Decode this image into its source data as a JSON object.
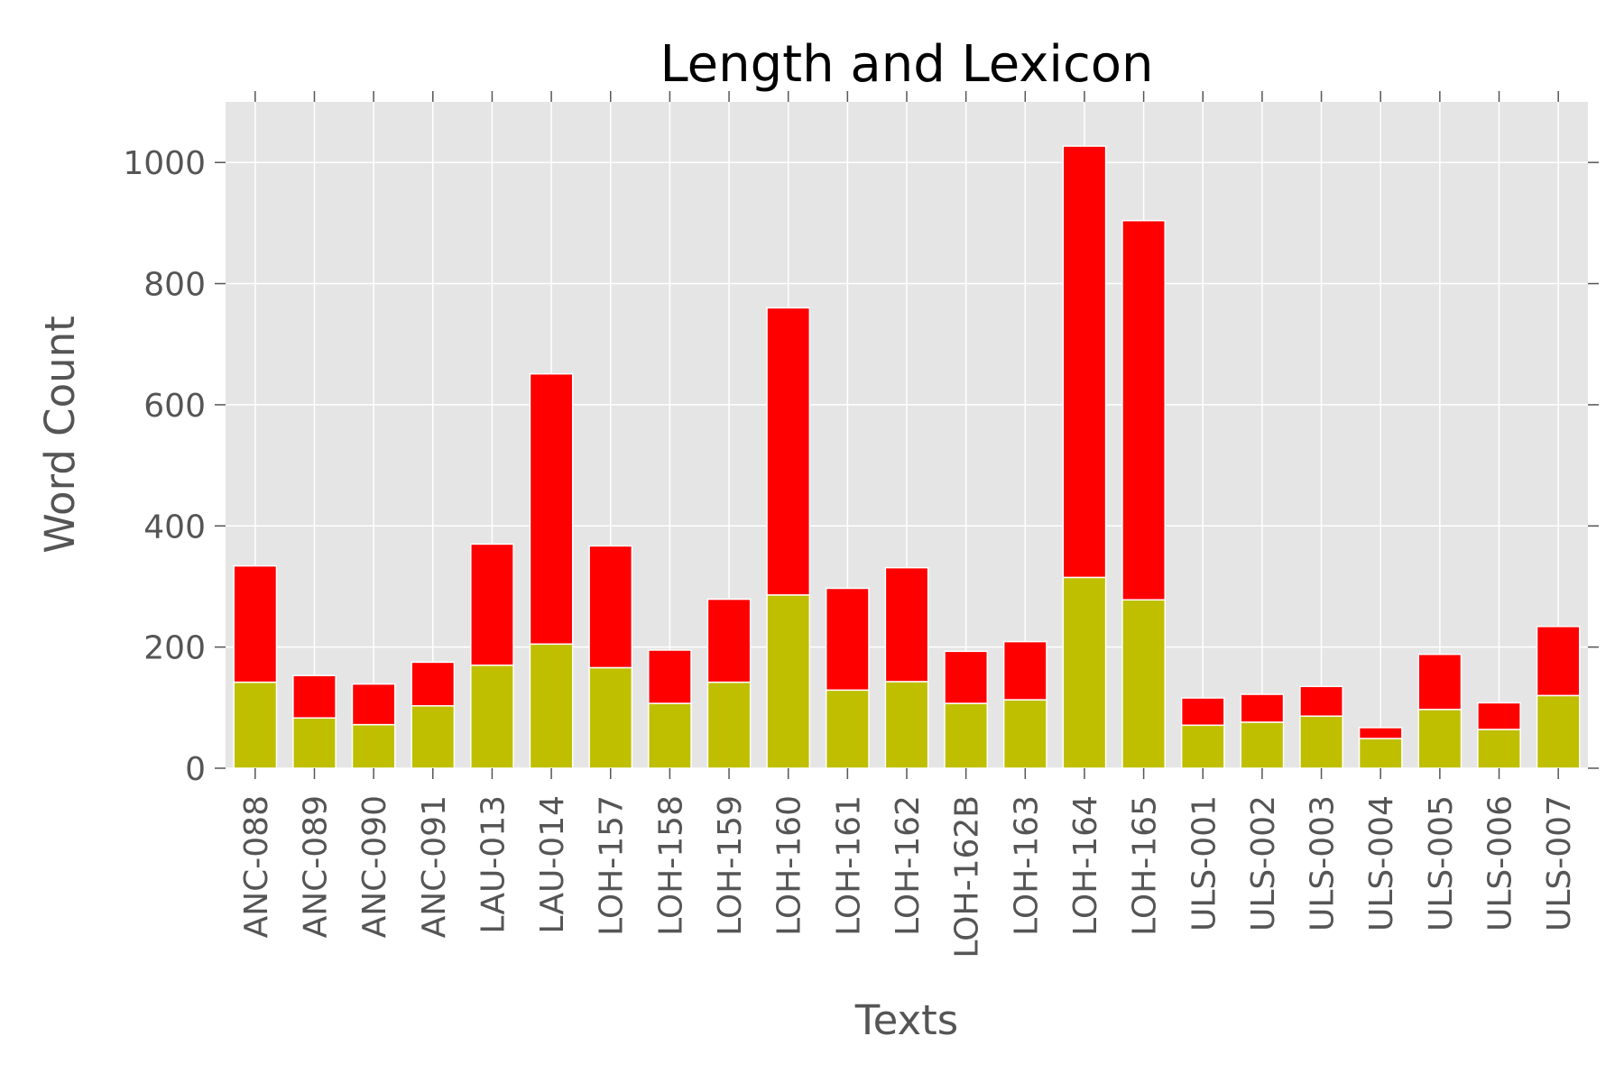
{
  "chart_data": {
    "type": "bar",
    "stacked": true,
    "title": "Length and Lexicon",
    "xlabel": "Texts",
    "ylabel": "Word Count",
    "ylim": [
      0,
      1100
    ],
    "yticks": [
      0,
      200,
      400,
      600,
      800,
      1000
    ],
    "grid": true,
    "categories": [
      "ANC-088",
      "ANC-089",
      "ANC-090",
      "ANC-091",
      "LAU-013",
      "LAU-014",
      "LOH-157",
      "LOH-158",
      "LOH-159",
      "LOH-160",
      "LOH-161",
      "LOH-162",
      "LOH-162B",
      "LOH-163",
      "LOH-164",
      "LOH-165",
      "ULS-001",
      "ULS-002",
      "ULS-003",
      "ULS-004",
      "ULS-005",
      "ULS-006",
      "ULS-007"
    ],
    "series": [
      {
        "color": "#bfbf00",
        "values": [
          142,
          83,
          72,
          103,
          170,
          205,
          166,
          107,
          142,
          286,
          129,
          143,
          107,
          113,
          315,
          278,
          71,
          76,
          86,
          49,
          97,
          64,
          120
        ]
      },
      {
        "color": "#ff0000",
        "values": [
          192,
          70,
          67,
          72,
          200,
          446,
          201,
          88,
          137,
          474,
          168,
          188,
          86,
          96,
          712,
          626,
          45,
          46,
          49,
          18,
          91,
          44,
          114
        ]
      }
    ],
    "colors": {
      "plot_background": "#e5e5e5",
      "grid": "#ffffff",
      "tick_text": "#555555"
    }
  }
}
